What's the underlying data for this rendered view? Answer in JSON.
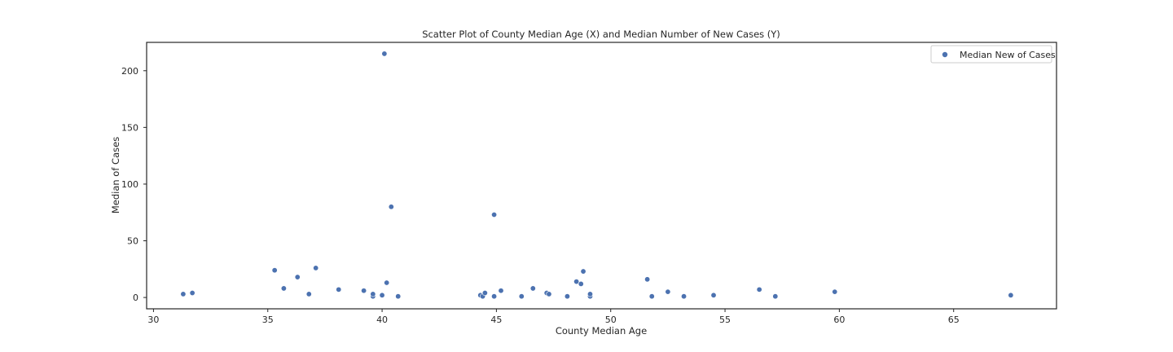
{
  "chart_data": {
    "type": "scatter",
    "title": "Scatter Plot of County Median Age (X) and Median Number of New Cases (Y)",
    "xlabel": "County Median Age",
    "ylabel": "Median of Cases",
    "xlim": [
      29.7,
      69.5
    ],
    "ylim": [
      -10,
      225
    ],
    "xticks": [
      30,
      35,
      40,
      45,
      50,
      55,
      60,
      65
    ],
    "yticks": [
      0,
      50,
      100,
      150,
      200
    ],
    "grid": false,
    "legend": {
      "position": "top-right"
    },
    "series": [
      {
        "name": "Median New of Cases",
        "color": "#4c72b0",
        "points": [
          [
            31.3,
            3
          ],
          [
            31.7,
            4
          ],
          [
            35.3,
            24
          ],
          [
            35.7,
            8
          ],
          [
            36.3,
            18
          ],
          [
            36.8,
            3
          ],
          [
            37.1,
            26
          ],
          [
            38.1,
            7
          ],
          [
            39.2,
            6
          ],
          [
            39.6,
            1
          ],
          [
            39.6,
            3
          ],
          [
            40.0,
            2
          ],
          [
            40.1,
            215
          ],
          [
            40.2,
            13
          ],
          [
            40.4,
            80
          ],
          [
            40.7,
            1
          ],
          [
            44.3,
            2
          ],
          [
            44.4,
            1
          ],
          [
            44.5,
            4
          ],
          [
            44.9,
            73
          ],
          [
            44.9,
            1
          ],
          [
            45.2,
            6
          ],
          [
            46.1,
            1
          ],
          [
            46.6,
            8
          ],
          [
            47.2,
            4
          ],
          [
            47.3,
            3
          ],
          [
            48.1,
            1
          ],
          [
            48.5,
            14
          ],
          [
            48.7,
            12
          ],
          [
            48.8,
            23
          ],
          [
            49.1,
            1
          ],
          [
            49.1,
            3
          ],
          [
            51.6,
            16
          ],
          [
            51.8,
            1
          ],
          [
            52.5,
            5
          ],
          [
            53.2,
            1
          ],
          [
            54.5,
            2
          ],
          [
            56.5,
            7
          ],
          [
            57.2,
            1
          ],
          [
            59.8,
            5
          ],
          [
            67.5,
            2
          ]
        ]
      }
    ]
  }
}
